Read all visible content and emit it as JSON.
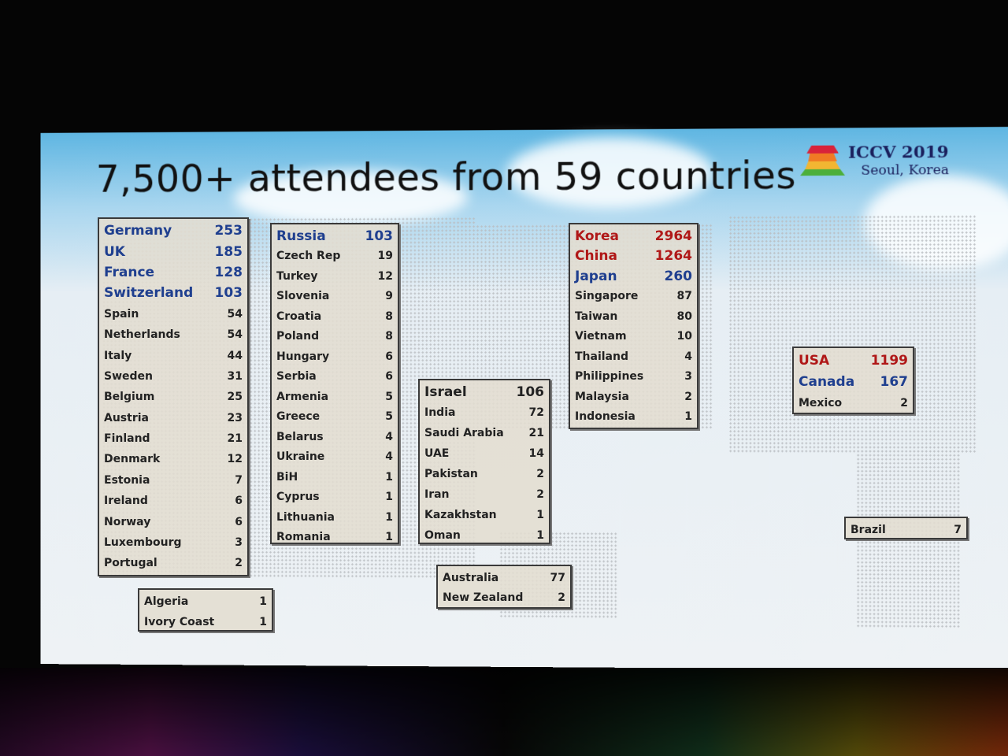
{
  "slide": {
    "title": "7,500+ attendees from 59 countries",
    "logo": {
      "line1": "ICCV 2019",
      "line2": "Seoul, Korea"
    },
    "colors": {
      "highlight_blue": "#1f3f8f",
      "highlight_red": "#b01818",
      "default_text": "#222222"
    },
    "groups": [
      {
        "id": "europe-1",
        "rows": [
          {
            "country": "Germany",
            "count": "253",
            "style": "blue"
          },
          {
            "country": "UK",
            "count": "185",
            "style": "blue"
          },
          {
            "country": "France",
            "count": "128",
            "style": "blue"
          },
          {
            "country": "Switzerland",
            "count": "103",
            "style": "blue"
          },
          {
            "country": "Spain",
            "count": "54"
          },
          {
            "country": "Netherlands",
            "count": "54"
          },
          {
            "country": "Italy",
            "count": "44"
          },
          {
            "country": "Sweden",
            "count": "31"
          },
          {
            "country": "Belgium",
            "count": "25"
          },
          {
            "country": "Austria",
            "count": "23"
          },
          {
            "country": "Finland",
            "count": "21"
          },
          {
            "country": "Denmark",
            "count": "12"
          },
          {
            "country": "Estonia",
            "count": "7"
          },
          {
            "country": "Ireland",
            "count": "6"
          },
          {
            "country": "Norway",
            "count": "6"
          },
          {
            "country": "Luxembourg",
            "count": "3"
          },
          {
            "country": "Portugal",
            "count": "2"
          }
        ]
      },
      {
        "id": "europe-2",
        "rows": [
          {
            "country": "Russia",
            "count": "103",
            "style": "blue"
          },
          {
            "country": "Czech Rep",
            "count": "19"
          },
          {
            "country": "Turkey",
            "count": "12"
          },
          {
            "country": "Slovenia",
            "count": "9"
          },
          {
            "country": "Croatia",
            "count": "8"
          },
          {
            "country": "Poland",
            "count": "8"
          },
          {
            "country": "Hungary",
            "count": "6"
          },
          {
            "country": "Serbia",
            "count": "6"
          },
          {
            "country": "Armenia",
            "count": "5"
          },
          {
            "country": "Greece",
            "count": "5"
          },
          {
            "country": "Belarus",
            "count": "4"
          },
          {
            "country": "Ukraine",
            "count": "4"
          },
          {
            "country": "BiH",
            "count": "1"
          },
          {
            "country": "Cyprus",
            "count": "1"
          },
          {
            "country": "Lithuania",
            "count": "1"
          },
          {
            "country": "Romania",
            "count": "1"
          }
        ]
      },
      {
        "id": "africa",
        "rows": [
          {
            "country": "Algeria",
            "count": "1"
          },
          {
            "country": "Ivory Coast",
            "count": "1"
          }
        ]
      },
      {
        "id": "middle-east",
        "rows": [
          {
            "country": "Israel",
            "count": "106",
            "style": "black"
          },
          {
            "country": "India",
            "count": "72"
          },
          {
            "country": "Saudi Arabia",
            "count": "21"
          },
          {
            "country": "UAE",
            "count": "14"
          },
          {
            "country": "Pakistan",
            "count": "2"
          },
          {
            "country": "Iran",
            "count": "2"
          },
          {
            "country": "Kazakhstan",
            "count": "1"
          },
          {
            "country": "Oman",
            "count": "1"
          }
        ]
      },
      {
        "id": "oceania",
        "rows": [
          {
            "country": "Australia",
            "count": "77"
          },
          {
            "country": "New Zealand",
            "count": "2"
          }
        ]
      },
      {
        "id": "asia",
        "rows": [
          {
            "country": "Korea",
            "count": "2964",
            "style": "red"
          },
          {
            "country": "China",
            "count": "1264",
            "style": "red"
          },
          {
            "country": "Japan",
            "count": "260",
            "style": "blue"
          },
          {
            "country": "Singapore",
            "count": "87"
          },
          {
            "country": "Taiwan",
            "count": "80"
          },
          {
            "country": "Vietnam",
            "count": "10"
          },
          {
            "country": "Thailand",
            "count": "4"
          },
          {
            "country": "Philippines",
            "count": "3"
          },
          {
            "country": "Malaysia",
            "count": "2"
          },
          {
            "country": "Indonesia",
            "count": "1"
          }
        ]
      },
      {
        "id": "north-america",
        "rows": [
          {
            "country": "USA",
            "count": "1199",
            "style": "red"
          },
          {
            "country": "Canada",
            "count": "167",
            "style": "blue"
          },
          {
            "country": "Mexico",
            "count": "2"
          }
        ]
      },
      {
        "id": "south-america",
        "rows": [
          {
            "country": "Brazil",
            "count": "7"
          }
        ]
      }
    ]
  }
}
